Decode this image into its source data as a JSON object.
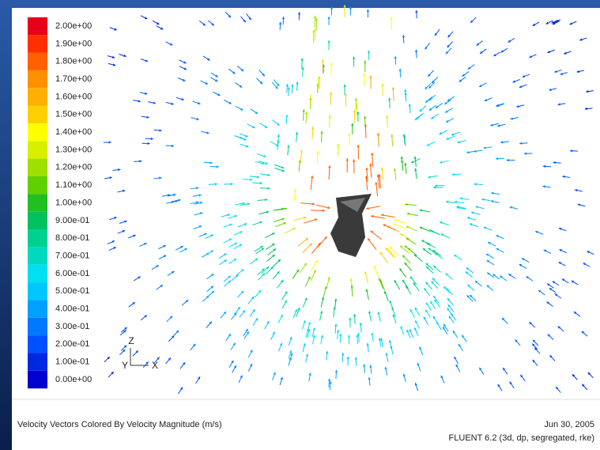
{
  "legend": {
    "labels": [
      "2.00e+00",
      "1.90e+00",
      "1.80e+00",
      "1.70e+00",
      "1.60e+00",
      "1.50e+00",
      "1.40e+00",
      "1.30e+00",
      "1.20e+00",
      "1.10e+00",
      "1.00e+00",
      "9.00e-01",
      "8.00e-01",
      "7.00e-01",
      "6.00e-01",
      "5.00e-01",
      "4.00e-01",
      "3.00e-01",
      "2.00e-01",
      "1.00e-01",
      "0.00e+00"
    ],
    "colors": [
      "#e8001a",
      "#ff3000",
      "#ff6000",
      "#ff9000",
      "#ffb000",
      "#ffd000",
      "#ffff00",
      "#d8f000",
      "#a0e000",
      "#60d000",
      "#20c020",
      "#00c060",
      "#00d090",
      "#00d8c0",
      "#00e0f0",
      "#00c8ff",
      "#00a0ff",
      "#0078ff",
      "#0050ff",
      "#0028e0",
      "#0000d0"
    ]
  },
  "axes": {
    "z": "Z",
    "y": "Y",
    "x": "X"
  },
  "footer": {
    "title": "Velocity Vectors Colored By Velocity Magnitude (m/s)",
    "date": "Jun 30, 2005",
    "solver": "FLUENT 6.2 (3d, dp, segregated, rke)"
  }
}
